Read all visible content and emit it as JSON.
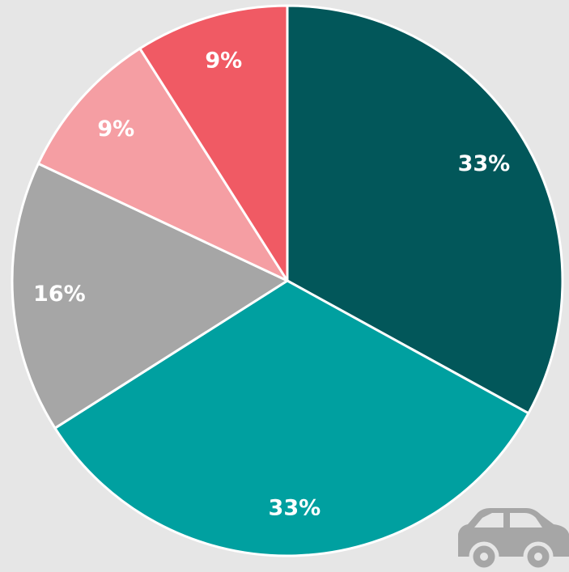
{
  "chart_data": {
    "type": "pie",
    "values": [
      33,
      33,
      16,
      9,
      9
    ],
    "value_labels": [
      "33%",
      "33%",
      "16%",
      "9%",
      "9%"
    ],
    "colors": [
      "#02575a",
      "#00a0a0",
      "#a6a6a6",
      "#f59ea3",
      "#f05a64"
    ]
  }
}
